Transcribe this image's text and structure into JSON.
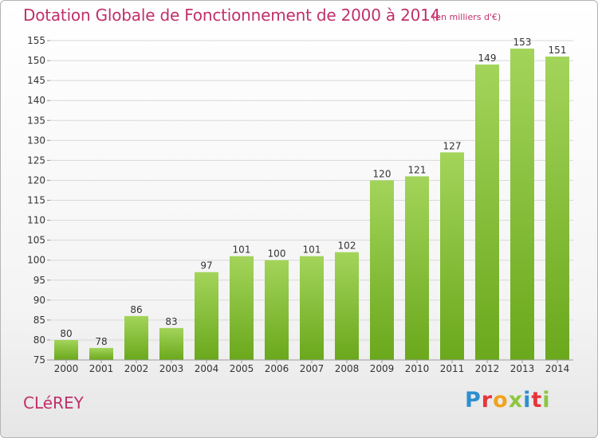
{
  "header": {
    "title": "Dotation Globale de Fonctionnement de 2000 à 2014",
    "subtitle": "(en milliers d'€)"
  },
  "footer": {
    "commune": "CLéREY",
    "logo_letters": [
      "P",
      "r",
      "o",
      "x",
      "i",
      "t",
      "i"
    ],
    "logo_colors": [
      "#2e8fd0",
      "#e8343c",
      "#f2a31c",
      "#8cc63f",
      "#2e8fd0",
      "#e8343c",
      "#8cc63f"
    ]
  },
  "colors": {
    "bar_light": "#a3d45a",
    "bar_dark": "#6aa81c",
    "accent": "#c0306a",
    "grid": "#d9d9d9",
    "axis_text": "#333333"
  },
  "chart_data": {
    "type": "bar",
    "categories": [
      "2000",
      "2001",
      "2002",
      "2003",
      "2004",
      "2005",
      "2006",
      "2007",
      "2008",
      "2009",
      "2010",
      "2011",
      "2012",
      "2013",
      "2014"
    ],
    "values": [
      80,
      78,
      86,
      83,
      97,
      101,
      100,
      101,
      102,
      120,
      121,
      127,
      149,
      153,
      151
    ],
    "data_labels": [
      "80",
      "78",
      "86",
      "83",
      "97",
      "101",
      "100",
      "101",
      "102",
      "120",
      "121",
      "127",
      "149",
      "153",
      "151"
    ],
    "yticks": [
      75,
      80,
      85,
      90,
      95,
      100,
      105,
      110,
      115,
      120,
      125,
      130,
      135,
      140,
      145,
      150,
      155
    ],
    "ylim": [
      75,
      155
    ],
    "xlabel": "",
    "ylabel": "",
    "grid": true,
    "legend": "none"
  }
}
